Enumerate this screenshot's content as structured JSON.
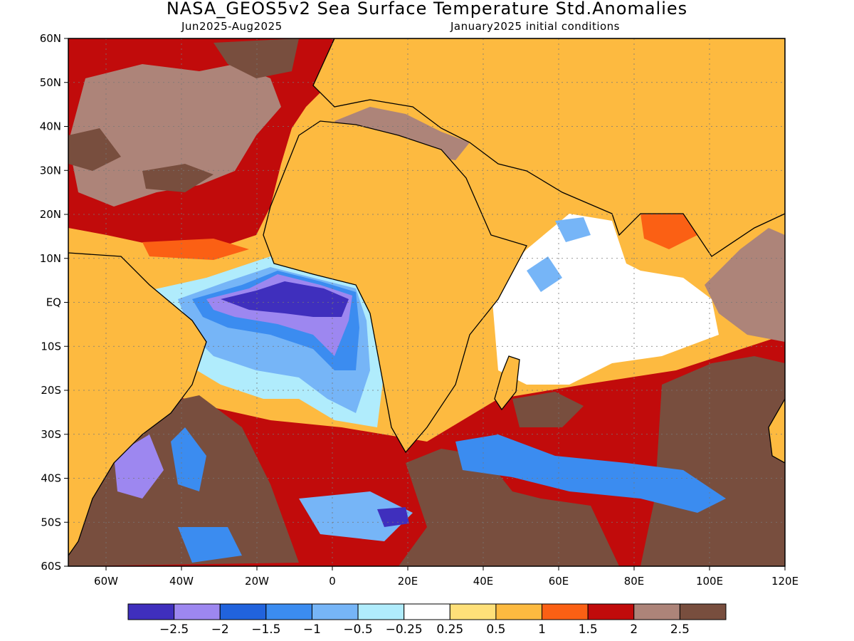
{
  "header": {
    "title": "NASA_GEOS5v2 Sea Surface Temperature Std.Anomalies",
    "period": "Jun2025-Aug2025",
    "init": "January2025 initial conditions"
  },
  "map": {
    "lon_range": [
      -70,
      120
    ],
    "lat_range": [
      -60,
      60
    ],
    "background_color": "#fdba40",
    "lat_ticks": [
      "60N",
      "50N",
      "40N",
      "30N",
      "20N",
      "10N",
      "EQ",
      "10S",
      "20S",
      "30S",
      "40S",
      "50S",
      "60S"
    ],
    "lon_ticks": [
      "60W",
      "40W",
      "20W",
      "0",
      "20E",
      "40E",
      "60E",
      "80E",
      "100E",
      "120E"
    ],
    "gridlines": "dotted"
  },
  "colorbar": {
    "colors": [
      "#3f2fbd",
      "#9d87f0",
      "#2163dd",
      "#3b8cf0",
      "#76b5f7",
      "#b0ecfc",
      "#ffffff",
      "#ffe079",
      "#fdba40",
      "#fb6014",
      "#c10b0b",
      "#ad8479",
      "#784e3e"
    ],
    "labels": [
      "-2.5",
      "-2",
      "-1.5",
      "-1",
      "-0.5",
      "-0.25",
      "0.25",
      "0.5",
      "1",
      "1.5",
      "2",
      "2.5"
    ]
  }
}
